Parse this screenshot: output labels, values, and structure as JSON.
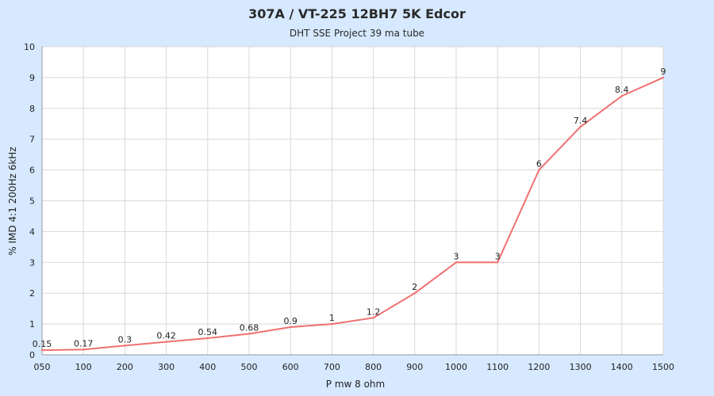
{
  "chart_data": {
    "type": "line",
    "title": "307A / VT-225 12BH7  5K Edcor",
    "subtitle": "DHT SSE Project 39 ma tube",
    "xlabel": "P mw 8 ohm",
    "ylabel": "% IMD 4:1 200Hz 6kHz",
    "categories": [
      "050",
      "100",
      "200",
      "300",
      "400",
      "500",
      "600",
      "700",
      "800",
      "900",
      "1000",
      "1100",
      "1200",
      "1300",
      "1400",
      "1500"
    ],
    "series": [
      {
        "values": [
          0.15,
          0.17,
          0.3,
          0.42,
          0.54,
          0.68,
          0.9,
          1,
          1.2,
          2,
          3,
          3,
          6,
          7.4,
          8.4,
          9
        ],
        "data_labels": [
          "0.15",
          "0.17",
          "0.3",
          "0.42",
          "0.54",
          "0.68",
          "0.9",
          "1",
          "1.2",
          "2",
          "3",
          "3",
          "6",
          "7.4",
          "8.4",
          "9"
        ],
        "color": "#f07070"
      }
    ],
    "ylim": [
      0,
      10
    ],
    "yticks": [
      "0",
      "1",
      "2",
      "3",
      "4",
      "5",
      "6",
      "7",
      "8",
      "9",
      "10"
    ],
    "grid": true,
    "colors": {
      "background": "#d6e9ff",
      "plot_background": "#ffffff",
      "grid": "#d8d8d8",
      "axis": "#999999",
      "line": "#f07070"
    }
  }
}
